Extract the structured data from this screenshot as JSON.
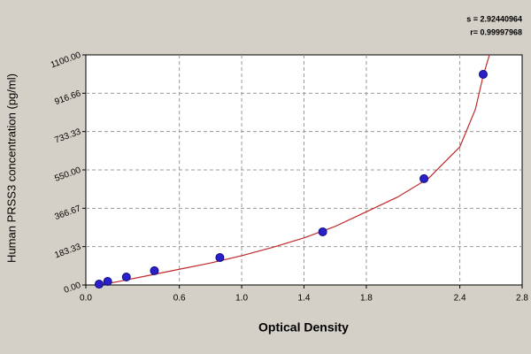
{
  "chart_data": {
    "type": "scatter",
    "x_label": "Optical Density",
    "y_label": "Human PRSS3 concentration (pg/ml)",
    "annotations": [
      "s = 2.92440964",
      "r= 0.99997968"
    ],
    "xlim": [
      0,
      2.8
    ],
    "ylim": [
      0,
      1100
    ],
    "xticks": [
      {
        "value": 0,
        "label": "0.0"
      },
      0.6,
      {
        "value": 1,
        "label": "1.0"
      },
      1.4,
      1.8,
      2.4,
      2.8
    ],
    "yticks": [
      {
        "value": 0,
        "label": "0.00"
      },
      183.33,
      366.67,
      {
        "value": 550,
        "label": "550.00"
      },
      733.33,
      916.66,
      {
        "value": 1100,
        "label": "1100.00"
      }
    ],
    "grid": true,
    "series": [
      {
        "color": "#2a1fc8",
        "x": [
          0.085,
          0.14,
          0.26,
          0.44,
          0.86,
          1.52,
          2.17,
          2.55
        ],
        "values": [
          4,
          17,
          38,
          68,
          131,
          254,
          508,
          1007
        ]
      }
    ],
    "curve": {
      "color": "#c0282a",
      "x": [
        0.05,
        0.2,
        0.4,
        0.6,
        0.8,
        1.0,
        1.2,
        1.4,
        1.6,
        1.8,
        2.0,
        2.2,
        2.4,
        2.5,
        2.55,
        2.59
      ],
      "values": [
        -5,
        15,
        45,
        75,
        105,
        140,
        180,
        225,
        280,
        350,
        420,
        510,
        660,
        840,
        1000,
        1100
      ]
    }
  }
}
